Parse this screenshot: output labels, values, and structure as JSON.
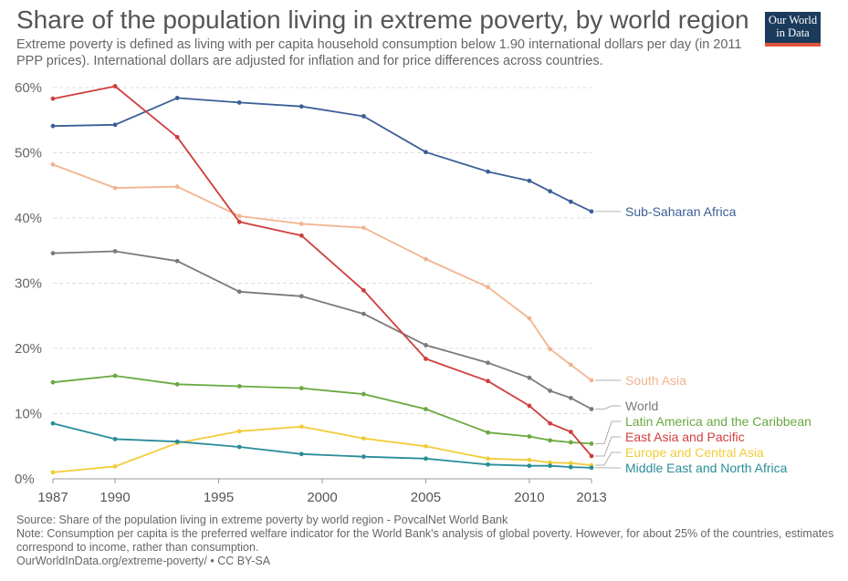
{
  "header": {
    "title": "Share of the population living in extreme poverty, by world region",
    "subtitle": "Extreme poverty is defined as living with per capita household consumption below 1.90 international dollars per day (in 2011 PPP prices). International dollars are adjusted for inflation and for price differences across countries."
  },
  "logo": {
    "line1": "Our World",
    "line2": "in Data",
    "bg_color": "#1a3b5c",
    "bar_color": "#e0543a"
  },
  "footer": {
    "source": "Source: Share of the population living in extreme poverty by world region - PovcalNet World Bank",
    "note": "Note: Consumption per capita is the preferred welfare indicator for the World Bank's analysis of global poverty. However, for about 25% of the countries, estimates correspond to income, rather than consumption.",
    "license": "OurWorldInData.org/extreme-poverty/ • CC BY-SA"
  },
  "chart_data": {
    "type": "line",
    "xlim": [
      1987,
      2013
    ],
    "ylim": [
      0,
      60
    ],
    "x_ticks": [
      1987,
      1990,
      1995,
      2000,
      2005,
      2010,
      2013
    ],
    "y_ticks": [
      0,
      10,
      20,
      30,
      40,
      50,
      60
    ],
    "y_tick_labels": [
      "0%",
      "10%",
      "20%",
      "30%",
      "40%",
      "50%",
      "60%"
    ],
    "grid": true,
    "legend": "right (direct labels)",
    "x": [
      1987,
      1990,
      1993,
      1996,
      1999,
      2002,
      2005,
      2008,
      2010,
      2011,
      2012,
      2013
    ],
    "series": [
      {
        "name": "Sub-Saharan Africa",
        "color": "#3b5f96",
        "values": [
          54.1,
          54.3,
          58.4,
          57.7,
          57.1,
          55.6,
          50.1,
          47.1,
          45.7,
          44.1,
          42.5,
          41.0
        ]
      },
      {
        "name": "South Asia",
        "color": "#f2b48f",
        "values": [
          48.2,
          44.6,
          44.8,
          40.3,
          39.1,
          38.5,
          33.7,
          29.4,
          24.6,
          19.9,
          17.5,
          15.1
        ]
      },
      {
        "name": "World",
        "color": "#7a7a7a",
        "values": [
          34.6,
          34.9,
          33.4,
          28.7,
          28.0,
          25.3,
          20.5,
          17.8,
          15.5,
          13.5,
          12.4,
          10.7
        ]
      },
      {
        "name": "Latin America and the Caribbean",
        "color": "#6aa842",
        "values": [
          14.8,
          15.8,
          14.5,
          14.2,
          13.9,
          13.0,
          10.7,
          7.1,
          6.5,
          5.9,
          5.6,
          5.4
        ]
      },
      {
        "name": "East Asia and Pacific",
        "color": "#d03e3e",
        "values": [
          58.3,
          60.2,
          52.4,
          39.4,
          37.3,
          28.9,
          18.4,
          15.0,
          11.2,
          8.5,
          7.2,
          3.5
        ]
      },
      {
        "name": "Europe and Central Asia",
        "color": "#f2cc3a",
        "values": [
          1.0,
          1.9,
          5.5,
          7.3,
          8.0,
          6.2,
          5.0,
          3.1,
          2.9,
          2.5,
          2.4,
          2.1
        ]
      },
      {
        "name": "Middle East and North Africa",
        "color": "#2a8d99",
        "values": [
          8.5,
          6.1,
          5.7,
          4.9,
          3.8,
          3.4,
          3.1,
          2.2,
          2.0,
          2.0,
          1.8,
          1.7
        ]
      }
    ]
  }
}
